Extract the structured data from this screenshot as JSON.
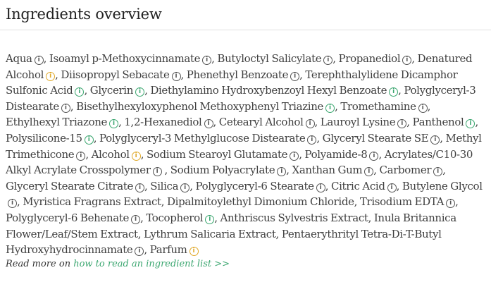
{
  "title": "Ingredients overview",
  "colors": {
    "good": "#3aa66f",
    "caution": "#e0a92a",
    "neutral": "#555555"
  },
  "info_glyph": "i",
  "ingredients": [
    {
      "name": "Aqua",
      "rating": "neutral",
      "sep": ", "
    },
    {
      "name": "Isoamyl p-Methoxycinnamate",
      "rating": "neutral",
      "sep": ", "
    },
    {
      "name": "Butyloctyl Salicylate",
      "rating": "neutral",
      "sep": ", "
    },
    {
      "name": "Propanediol",
      "rating": "neutral",
      "sep": ", "
    },
    {
      "name": "Denatured Alcohol",
      "rating": "caution",
      "sep": ", "
    },
    {
      "name": "Diisopropyl Sebacate",
      "rating": "neutral",
      "sep": ", "
    },
    {
      "name": "Phenethyl Benzoate",
      "rating": "neutral",
      "sep": ", "
    },
    {
      "name": "Terephthalylidene Dicamphor Sulfonic Acid",
      "rating": "good",
      "sep": ", "
    },
    {
      "name": "Glycerin",
      "rating": "good",
      "sep": ", "
    },
    {
      "name": "Diethylamino Hydroxybenzoyl Hexyl Benzoate",
      "rating": "good",
      "sep": ", "
    },
    {
      "name": "Polyglyceryl-3 Distearate",
      "rating": "neutral",
      "sep": ", "
    },
    {
      "name": "Bisethylhexyloxyphenol Methoxyphenyl Triazine",
      "rating": "good",
      "sep": ", "
    },
    {
      "name": "Tromethamine",
      "rating": "neutral",
      "sep": ", "
    },
    {
      "name": "Ethylhexyl Triazone",
      "rating": "good",
      "sep": ", "
    },
    {
      "name": "1,2-Hexanediol",
      "rating": "neutral",
      "sep": ", "
    },
    {
      "name": "Cetearyl Alcohol",
      "rating": "neutral",
      "sep": ", "
    },
    {
      "name": "Lauroyl Lysine",
      "rating": "neutral",
      "sep": ", "
    },
    {
      "name": "Panthenol",
      "rating": "good",
      "sep": ", "
    },
    {
      "name": "Polysilicone-15",
      "rating": "good",
      "sep": ", "
    },
    {
      "name": "Polyglyceryl-3 Methylglucose Distearate",
      "rating": "neutral",
      "sep": ", "
    },
    {
      "name": "Glyceryl Stearate SE",
      "rating": "neutral",
      "sep": ", "
    },
    {
      "name": "Methyl Trimethicone",
      "rating": "neutral",
      "sep": ", "
    },
    {
      "name": "Alcohol",
      "rating": "caution",
      "sep": ", "
    },
    {
      "name": "Sodium Stearoyl Glutamate",
      "rating": "neutral",
      "sep": ", "
    },
    {
      "name": "Polyamide-8",
      "rating": "neutral",
      "sep": ", "
    },
    {
      "name": "Acrylates/C10-30 Alkyl Acrylate Crosspolymer",
      "rating": "neutral",
      "sep": " , "
    },
    {
      "name": "Sodium Polyacrylate",
      "rating": "neutral",
      "sep": ", "
    },
    {
      "name": "Xanthan Gum",
      "rating": "neutral",
      "sep": ", "
    },
    {
      "name": "Carbomer",
      "rating": "neutral",
      "sep": ", "
    },
    {
      "name": "Glyceryl Stearate Citrate",
      "rating": "neutral",
      "sep": ", "
    },
    {
      "name": "Silica",
      "rating": "neutral",
      "sep": ", "
    },
    {
      "name": "Polyglyceryl-6 Stearate",
      "rating": "neutral",
      "sep": ", "
    },
    {
      "name": "Citric Acid",
      "rating": "neutral",
      "sep": ", "
    },
    {
      "name": "Butylene Glycol",
      "rating": "neutral",
      "sep": ", "
    },
    {
      "name": "Myristica Fragrans Extract",
      "rating": null,
      "sep": ", "
    },
    {
      "name": "Dipalmitoylethyl Dimonium Chloride",
      "rating": null,
      "sep": ", "
    },
    {
      "name": "Trisodium EDTA",
      "rating": "neutral",
      "sep": ", "
    },
    {
      "name": "Polyglyceryl-6 Behenate",
      "rating": "neutral",
      "sep": ", "
    },
    {
      "name": "Tocopherol",
      "rating": "good",
      "sep": ", "
    },
    {
      "name": "Anthriscus Sylvestris Extract",
      "rating": null,
      "sep": ", "
    },
    {
      "name": "Inula Britannica Flower/Leaf/Stem Extract",
      "rating": null,
      "sep": ", "
    },
    {
      "name": "Lythrum Salicaria Extract",
      "rating": null,
      "sep": ", "
    },
    {
      "name": "Pentaerythrityl Tetra-Di-T-Butyl Hydroxyhydrocinnamate",
      "rating": "neutral",
      "sep": ", "
    },
    {
      "name": "Parfum",
      "rating": "caution",
      "sep": ""
    }
  ],
  "read_more": {
    "prefix": "Read more on ",
    "link_text": "how to read an ingredient list >>"
  }
}
